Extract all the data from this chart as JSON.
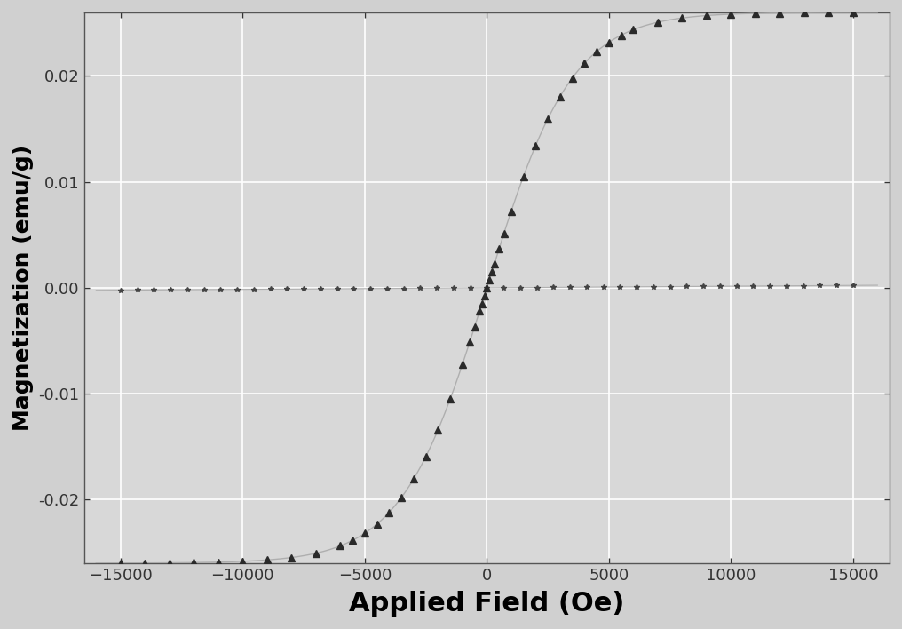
{
  "title": "",
  "xlabel": "Applied Field (Oe)",
  "ylabel": "Magnetization (emu/g)",
  "xlim": [
    -16500,
    16500
  ],
  "ylim": [
    -0.026,
    0.026
  ],
  "xticks": [
    -15000,
    -10000,
    -5000,
    0,
    5000,
    10000,
    15000
  ],
  "yticks": [
    -0.02,
    -0.01,
    0.0,
    0.01,
    0.02
  ],
  "background_color": "#d0d0d0",
  "plot_bg_color": "#d8d8d8",
  "grid_color": "#ffffff",
  "Ms_ferro": 0.026,
  "Hc_ferro": 3500,
  "Ms_dia": 0.0,
  "dia_slope": 1.5e-08,
  "marker_color": "#2a2a2a",
  "line_color": "#999999"
}
